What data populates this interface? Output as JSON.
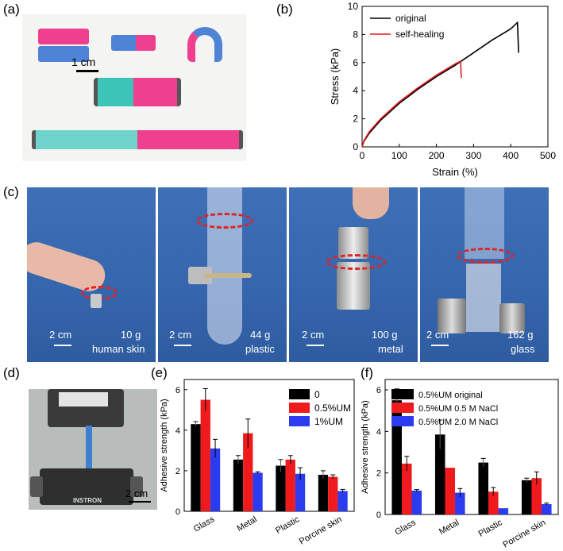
{
  "panels": {
    "a": {
      "label": "(a)",
      "scalebar": "1 cm"
    },
    "b": {
      "label": "(b)"
    },
    "c": {
      "label": "(c)",
      "photos": [
        {
          "scale": "2 cm",
          "mass": "10 g",
          "substrate": "human skin"
        },
        {
          "scale": "2 cm",
          "mass": "44 g",
          "substrate": "plastic"
        },
        {
          "scale": "2 cm",
          "mass": "100 g",
          "substrate": "metal"
        },
        {
          "scale": "2 cm",
          "mass": "162 g",
          "substrate": "glass"
        }
      ]
    },
    "d": {
      "label": "(d)",
      "scalebar": "2 cm",
      "brand": "INSTRON"
    },
    "e": {
      "label": "(e)"
    },
    "f": {
      "label": "(f)"
    }
  },
  "chart_data": [
    {
      "id": "b",
      "type": "line",
      "xlabel": "Strain (%)",
      "ylabel": "Stress (kPa)",
      "xlim": [
        0,
        500
      ],
      "ylim": [
        0,
        10
      ],
      "xticks": [
        "0",
        "100",
        "200",
        "300",
        "400",
        "500"
      ],
      "yticks": [
        "0",
        "2",
        "4",
        "6",
        "8",
        "10"
      ],
      "legend": "top-left",
      "series": [
        {
          "name": "original",
          "color": "#000000",
          "x": [
            0,
            5,
            20,
            50,
            100,
            150,
            200,
            250,
            300,
            350,
            400,
            418,
            420,
            421
          ],
          "y": [
            0,
            0.4,
            1.0,
            1.9,
            3.1,
            4.1,
            5.0,
            5.8,
            6.7,
            7.6,
            8.4,
            8.85,
            7.5,
            6.7
          ]
        },
        {
          "name": "self-healing",
          "color": "#e0191b",
          "x": [
            0,
            5,
            20,
            50,
            100,
            150,
            200,
            250,
            265,
            266,
            267
          ],
          "y": [
            0,
            0.45,
            1.1,
            2.0,
            3.2,
            4.2,
            5.1,
            5.9,
            6.1,
            5.4,
            4.9
          ]
        }
      ]
    },
    {
      "id": "e",
      "type": "bar",
      "ylabel": "Adhesive strength (kPa)",
      "ylim": [
        0,
        6.5
      ],
      "yticks": [
        "0",
        "2",
        "4",
        "6"
      ],
      "categories": [
        "Glass",
        "Metal",
        "Plastic",
        "Porcine skin"
      ],
      "legend": "top-right",
      "series": [
        {
          "name": "0",
          "color": "#000000",
          "values": [
            4.3,
            2.55,
            2.25,
            1.8
          ],
          "errors": [
            0.12,
            0.2,
            0.3,
            0.2
          ]
        },
        {
          "name": "0.5%UM",
          "color": "#ef1a1d",
          "values": [
            5.5,
            3.85,
            2.55,
            1.7
          ],
          "errors": [
            0.55,
            0.7,
            0.2,
            0.1
          ]
        },
        {
          "name": "1%UM",
          "color": "#2b3cf0",
          "values": [
            3.1,
            1.9,
            1.85,
            1.0
          ],
          "errors": [
            0.45,
            0.05,
            0.3,
            0.08
          ]
        }
      ]
    },
    {
      "id": "f",
      "type": "bar",
      "ylabel": "Adhesive strength (kPa)",
      "ylim": [
        0,
        6.5
      ],
      "yticks": [
        "0",
        "2",
        "4",
        "6"
      ],
      "categories": [
        "Glass",
        "Metal",
        "Plastic",
        "Porcine skin"
      ],
      "legend": "top",
      "series": [
        {
          "name": "0.5%UM original",
          "color": "#000000",
          "values": [
            5.5,
            3.85,
            2.5,
            1.65
          ],
          "errors": [
            0.55,
            0.7,
            0.2,
            0.1
          ]
        },
        {
          "name": "0.5%UM 0.5 M NaCl",
          "color": "#ef1a1d",
          "values": [
            2.45,
            2.25,
            1.1,
            1.75
          ],
          "errors": [
            0.35,
            0.0,
            0.2,
            0.3
          ]
        },
        {
          "name": "0.5%UM 2.0 M NaCl",
          "color": "#2b3cf0",
          "values": [
            1.15,
            1.05,
            0.3,
            0.5
          ],
          "errors": [
            0.05,
            0.2,
            0.0,
            0.05
          ]
        }
      ]
    }
  ]
}
